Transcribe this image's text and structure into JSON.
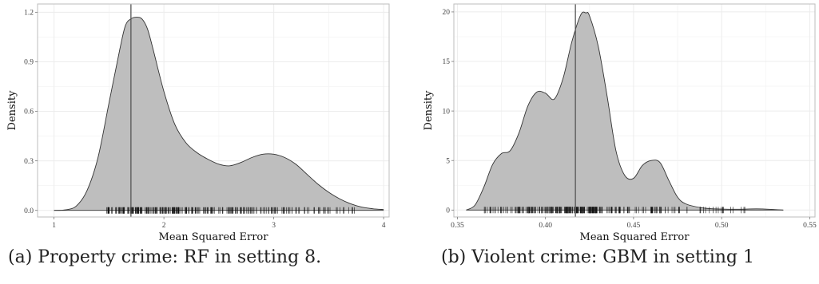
{
  "chart_data": [
    {
      "type": "area",
      "panel_id": "a",
      "xlabel": "Mean Squared Error",
      "ylabel": "Density",
      "xlim": [
        0.85,
        4.05
      ],
      "ylim": [
        -0.04,
        1.25
      ],
      "xticks": [
        1,
        2,
        3,
        4
      ],
      "xtick_labels": [
        "1",
        "2",
        "3",
        "4"
      ],
      "yticks": [
        0.0,
        0.3,
        0.6,
        0.9,
        1.2
      ],
      "ytick_labels": [
        "0.0",
        "0.3",
        "0.6",
        "0.9",
        "1.2"
      ],
      "vline": 1.7,
      "grid": true,
      "density": {
        "x": [
          1.0,
          1.1,
          1.2,
          1.3,
          1.4,
          1.5,
          1.6,
          1.65,
          1.7,
          1.75,
          1.8,
          1.85,
          1.9,
          2.0,
          2.1,
          2.2,
          2.3,
          2.4,
          2.5,
          2.6,
          2.7,
          2.8,
          2.9,
          3.0,
          3.1,
          3.2,
          3.3,
          3.4,
          3.5,
          3.6,
          3.7,
          3.8,
          3.9,
          4.0
        ],
        "y": [
          0.0,
          0.003,
          0.025,
          0.12,
          0.32,
          0.65,
          0.98,
          1.12,
          1.16,
          1.17,
          1.16,
          1.1,
          0.98,
          0.72,
          0.52,
          0.41,
          0.35,
          0.31,
          0.28,
          0.27,
          0.29,
          0.32,
          0.34,
          0.34,
          0.32,
          0.28,
          0.22,
          0.16,
          0.11,
          0.07,
          0.04,
          0.02,
          0.01,
          0.005
        ]
      },
      "rug_range": [
        1.45,
        3.75
      ]
    },
    {
      "type": "area",
      "panel_id": "b",
      "xlabel": "Mean Squared Error",
      "ylabel": "Density",
      "xlim": [
        0.348,
        0.553
      ],
      "ylim": [
        -0.7,
        20.8
      ],
      "xticks": [
        0.35,
        0.4,
        0.45,
        0.5,
        0.55
      ],
      "xtick_labels": [
        "0.35",
        "0.40",
        "0.45",
        "0.50",
        "0.55"
      ],
      "yticks": [
        0,
        5,
        10,
        15,
        20
      ],
      "ytick_labels": [
        "0",
        "5",
        "10",
        "15",
        "20"
      ],
      "vline": 0.417,
      "grid": true,
      "density": {
        "x": [
          0.355,
          0.36,
          0.365,
          0.37,
          0.375,
          0.38,
          0.385,
          0.39,
          0.395,
          0.4,
          0.405,
          0.41,
          0.415,
          0.42,
          0.423,
          0.425,
          0.43,
          0.435,
          0.44,
          0.445,
          0.45,
          0.455,
          0.46,
          0.465,
          0.47,
          0.475,
          0.48,
          0.49,
          0.5,
          0.51,
          0.52,
          0.53,
          0.535
        ],
        "y": [
          0.0,
          0.5,
          2.3,
          4.6,
          5.7,
          6.0,
          7.8,
          10.5,
          11.9,
          11.8,
          11.2,
          13.3,
          17.0,
          19.7,
          19.9,
          19.6,
          16.5,
          11.5,
          6.0,
          3.5,
          3.2,
          4.5,
          5.0,
          4.8,
          3.0,
          1.3,
          0.6,
          0.2,
          0.1,
          0.08,
          0.12,
          0.05,
          0.0
        ]
      },
      "rug_range": [
        0.365,
        0.52
      ]
    }
  ],
  "captions": {
    "a": "(a) Property crime: RF in setting 8.",
    "b": "(b) Violent crime: GBM in setting 1"
  },
  "colors": {
    "fill": "#bebebe",
    "line": "#333333",
    "grid": "#ececec",
    "frame": "#bdbdbd"
  }
}
